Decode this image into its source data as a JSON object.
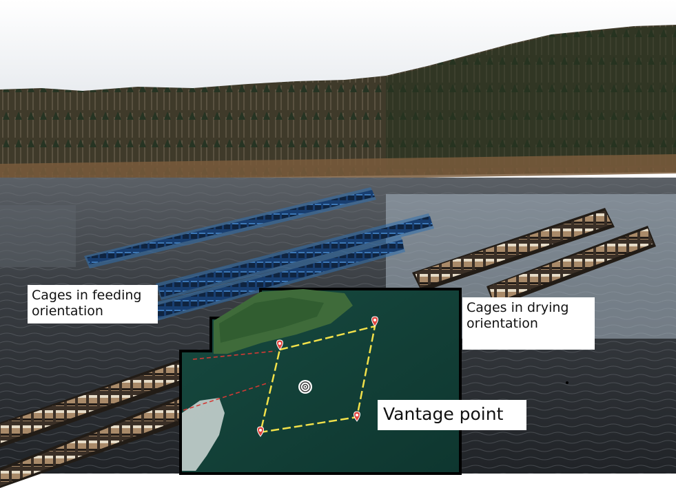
{
  "labels": {
    "feeding": "Cages in feeding orientation",
    "drying": "Cages in drying orientation",
    "vantage": "Vantage point"
  },
  "icons": {
    "vantage_marker": "target-icon",
    "waypoint": "map-pin-icon"
  },
  "colors": {
    "sky": "#f2f4f7",
    "forest": "#3b3a28",
    "water": "#2c2f33",
    "map_water": "#0f3b34",
    "boundary": "#f2e14a",
    "pin": "#e2473f",
    "feeding_cage": "#1b4a86",
    "drying_cage": "#8a6a4a"
  }
}
